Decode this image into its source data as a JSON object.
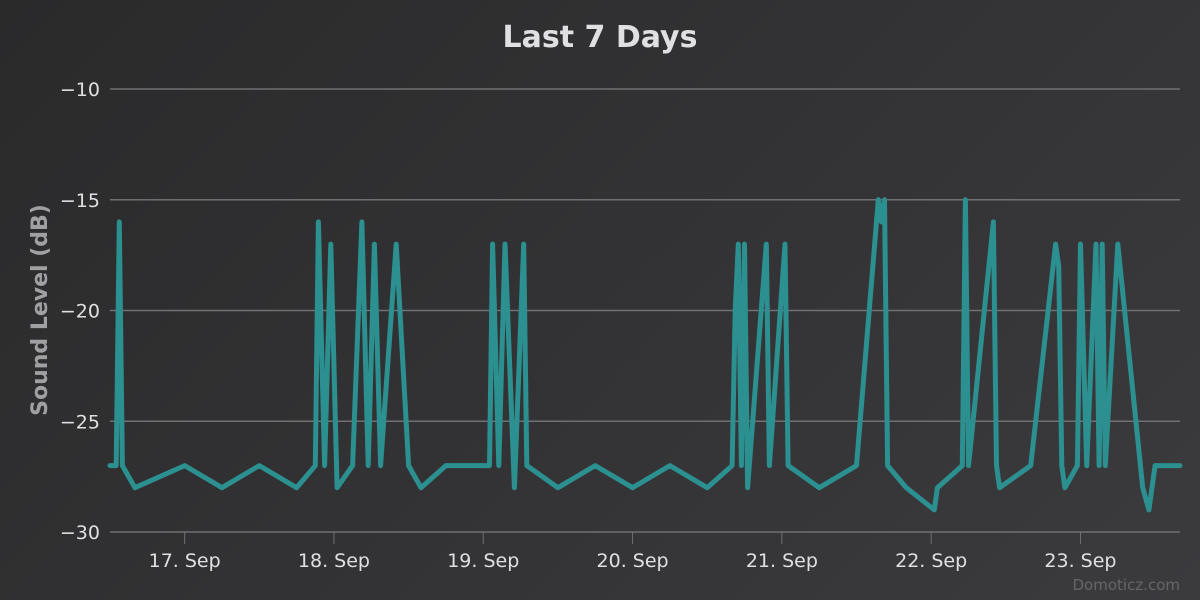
{
  "chart_data": {
    "type": "line",
    "title": "Last 7 Days",
    "ylabel": "Sound Level (dB)",
    "xlabel": "",
    "ylim": [
      -30,
      -10
    ],
    "yticks": [
      -10,
      -15,
      -20,
      -25,
      -30
    ],
    "ytick_labels": [
      "−10",
      "−15",
      "−20",
      "−25",
      "−30"
    ],
    "xlim": [
      "2023-09-16T12:00",
      "2023-09-23T16:00"
    ],
    "xticks": [
      {
        "t": "2023-09-17T00:00",
        "label": "17. Sep"
      },
      {
        "t": "2023-09-18T00:00",
        "label": "18. Sep"
      },
      {
        "t": "2023-09-19T00:00",
        "label": "19. Sep"
      },
      {
        "t": "2023-09-20T00:00",
        "label": "20. Sep"
      },
      {
        "t": "2023-09-21T00:00",
        "label": "21. Sep"
      },
      {
        "t": "2023-09-22T00:00",
        "label": "22. Sep"
      },
      {
        "t": "2023-09-23T00:00",
        "label": "23. Sep"
      }
    ],
    "grid": true,
    "legend": "none",
    "series": [
      {
        "color": "#2b908f",
        "x": [
          "2023-09-16T12:00",
          "2023-09-16T13:00",
          "2023-09-16T13:30",
          "2023-09-16T14:00",
          "2023-09-16T16:00",
          "2023-09-17T00:00",
          "2023-09-17T06:00",
          "2023-09-17T12:00",
          "2023-09-17T18:00",
          "2023-09-17T21:00",
          "2023-09-17T21:30",
          "2023-09-17T22:30",
          "2023-09-17T23:30",
          "2023-09-18T00:30",
          "2023-09-18T03:00",
          "2023-09-18T04:30",
          "2023-09-18T05:30",
          "2023-09-18T06:30",
          "2023-09-18T07:30",
          "2023-09-18T10:00",
          "2023-09-18T12:00",
          "2023-09-18T14:00",
          "2023-09-18T18:00",
          "2023-09-19T01:00",
          "2023-09-19T01:30",
          "2023-09-19T02:30",
          "2023-09-19T03:30",
          "2023-09-19T05:00",
          "2023-09-19T06:30",
          "2023-09-19T07:00",
          "2023-09-19T12:00",
          "2023-09-19T18:00",
          "2023-09-20T00:00",
          "2023-09-20T06:00",
          "2023-09-20T12:00",
          "2023-09-20T16:00",
          "2023-09-20T16:30",
          "2023-09-20T17:00",
          "2023-09-20T17:30",
          "2023-09-20T18:00",
          "2023-09-20T18:30",
          "2023-09-20T21:30",
          "2023-09-20T22:00",
          "2023-09-21T00:30",
          "2023-09-21T01:00",
          "2023-09-21T06:00",
          "2023-09-21T12:00",
          "2023-09-21T15:30",
          "2023-09-21T16:00",
          "2023-09-21T16:30",
          "2023-09-21T17:00",
          "2023-09-21T20:00",
          "2023-09-22T00:30",
          "2023-09-22T01:00",
          "2023-09-22T05:00",
          "2023-09-22T05:30",
          "2023-09-22T06:00",
          "2023-09-22T10:00",
          "2023-09-22T10:30",
          "2023-09-22T11:00",
          "2023-09-22T16:00",
          "2023-09-22T20:00",
          "2023-09-22T20:30",
          "2023-09-22T21:00",
          "2023-09-22T21:30",
          "2023-09-22T23:30",
          "2023-09-23T00:00",
          "2023-09-23T01:00",
          "2023-09-23T02:30",
          "2023-09-23T03:00",
          "2023-09-23T03:30",
          "2023-09-23T04:00",
          "2023-09-23T06:00",
          "2023-09-23T10:00",
          "2023-09-23T11:00",
          "2023-09-23T11:30",
          "2023-09-23T12:00",
          "2023-09-23T16:00"
        ],
        "y": [
          -27,
          -27,
          -16,
          -27,
          -28,
          -27,
          -28,
          -27,
          -28,
          -27,
          -16,
          -27,
          -17,
          -28,
          -27,
          -16,
          -27,
          -17,
          -27,
          -17,
          -27,
          -28,
          -27,
          -27,
          -17,
          -27,
          -17,
          -28,
          -17,
          -27,
          -28,
          -27,
          -28,
          -27,
          -28,
          -27,
          -20,
          -17,
          -27,
          -17,
          -28,
          -17,
          -27,
          -17,
          -27,
          -28,
          -27,
          -15,
          -16,
          -15,
          -27,
          -28,
          -29,
          -28,
          -27,
          -15,
          -27,
          -16,
          -27,
          -28,
          -27,
          -17,
          -18,
          -27,
          -28,
          -27,
          -17,
          -27,
          -17,
          -27,
          -17,
          -27,
          -17,
          -28,
          -29,
          -28,
          -27,
          -27
        ]
      }
    ]
  },
  "credit": "Domoticz.com"
}
